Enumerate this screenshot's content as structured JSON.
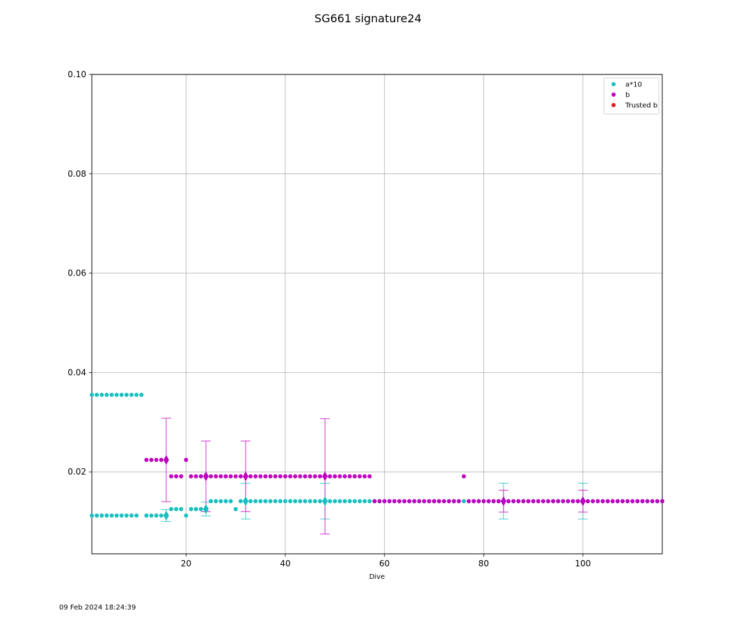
{
  "chart_data": {
    "type": "scatter",
    "title": "SG661 signature24",
    "xlabel": "Dive",
    "ylabel": "",
    "xlim": [
      1,
      116
    ],
    "ylim": [
      0.0035,
      0.1
    ],
    "xticks": [
      20,
      40,
      60,
      80,
      100
    ],
    "yticks": [
      0.02,
      0.04,
      0.06,
      0.08,
      0.1
    ],
    "xtick_labels": [
      "20",
      "40",
      "60",
      "80",
      "100"
    ],
    "ytick_labels": [
      "0.02",
      "0.04",
      "0.06",
      "0.08",
      "0.10"
    ],
    "grid": true,
    "legend_position": "top-right",
    "series": [
      {
        "name": "a*10",
        "color": "#17bfbf",
        "segments": [
          {
            "x_start": 1,
            "x_end": 11,
            "y": 0.0355
          },
          {
            "x_start": 1,
            "x_end": 10,
            "y": 0.0112
          },
          {
            "x_start": 12,
            "x_end": 16,
            "y": 0.0112
          },
          {
            "x_start": 17,
            "x_end": 19,
            "y": 0.0125
          },
          {
            "x_start": 20,
            "x_end": 20,
            "y": 0.0112
          },
          {
            "x_start": 21,
            "x_end": 24,
            "y": 0.0125
          },
          {
            "x_start": 25,
            "x_end": 29,
            "y": 0.0141
          },
          {
            "x_start": 30,
            "x_end": 30,
            "y": 0.0125
          },
          {
            "x_start": 31,
            "x_end": 116,
            "y": 0.0141
          }
        ],
        "markers": [
          {
            "x": 16,
            "y": 0.0112,
            "err": 0.0012
          },
          {
            "x": 24,
            "y": 0.0125,
            "err": 0.0014
          },
          {
            "x": 32,
            "y": 0.0141,
            "err": 0.0036
          },
          {
            "x": 48,
            "y": 0.0141,
            "err": 0.0036
          },
          {
            "x": 84,
            "y": 0.0141,
            "err": 0.0036
          },
          {
            "x": 100,
            "y": 0.0141,
            "err": 0.0036
          }
        ]
      },
      {
        "name": "b",
        "color": "#bf00bf",
        "segments": [
          {
            "x_start": 12,
            "x_end": 16,
            "y": 0.0224
          },
          {
            "x_start": 17,
            "x_end": 19,
            "y": 0.0191
          },
          {
            "x_start": 20,
            "x_end": 20,
            "y": 0.0224
          },
          {
            "x_start": 21,
            "x_end": 57,
            "y": 0.0191
          },
          {
            "x_start": 58,
            "x_end": 75,
            "y": 0.0141
          },
          {
            "x_start": 76,
            "x_end": 76,
            "y": 0.0191
          },
          {
            "x_start": 77,
            "x_end": 116,
            "y": 0.0141
          }
        ],
        "markers": [
          {
            "x": 16,
            "y": 0.0224,
            "err": 0.0084
          },
          {
            "x": 24,
            "y": 0.0191,
            "err": 0.0071
          },
          {
            "x": 32,
            "y": 0.0191,
            "err": 0.0071
          },
          {
            "x": 48,
            "y": 0.0191,
            "err": 0.0116
          },
          {
            "x": 84,
            "y": 0.0141,
            "err": 0.0022
          },
          {
            "x": 100,
            "y": 0.0141,
            "err": 0.0022
          }
        ]
      },
      {
        "name": "Trusted b",
        "color": "#e41a1c",
        "segments": [],
        "markers": []
      }
    ]
  },
  "footer": {
    "timestamp": "09 Feb 2024 18:24:39"
  }
}
